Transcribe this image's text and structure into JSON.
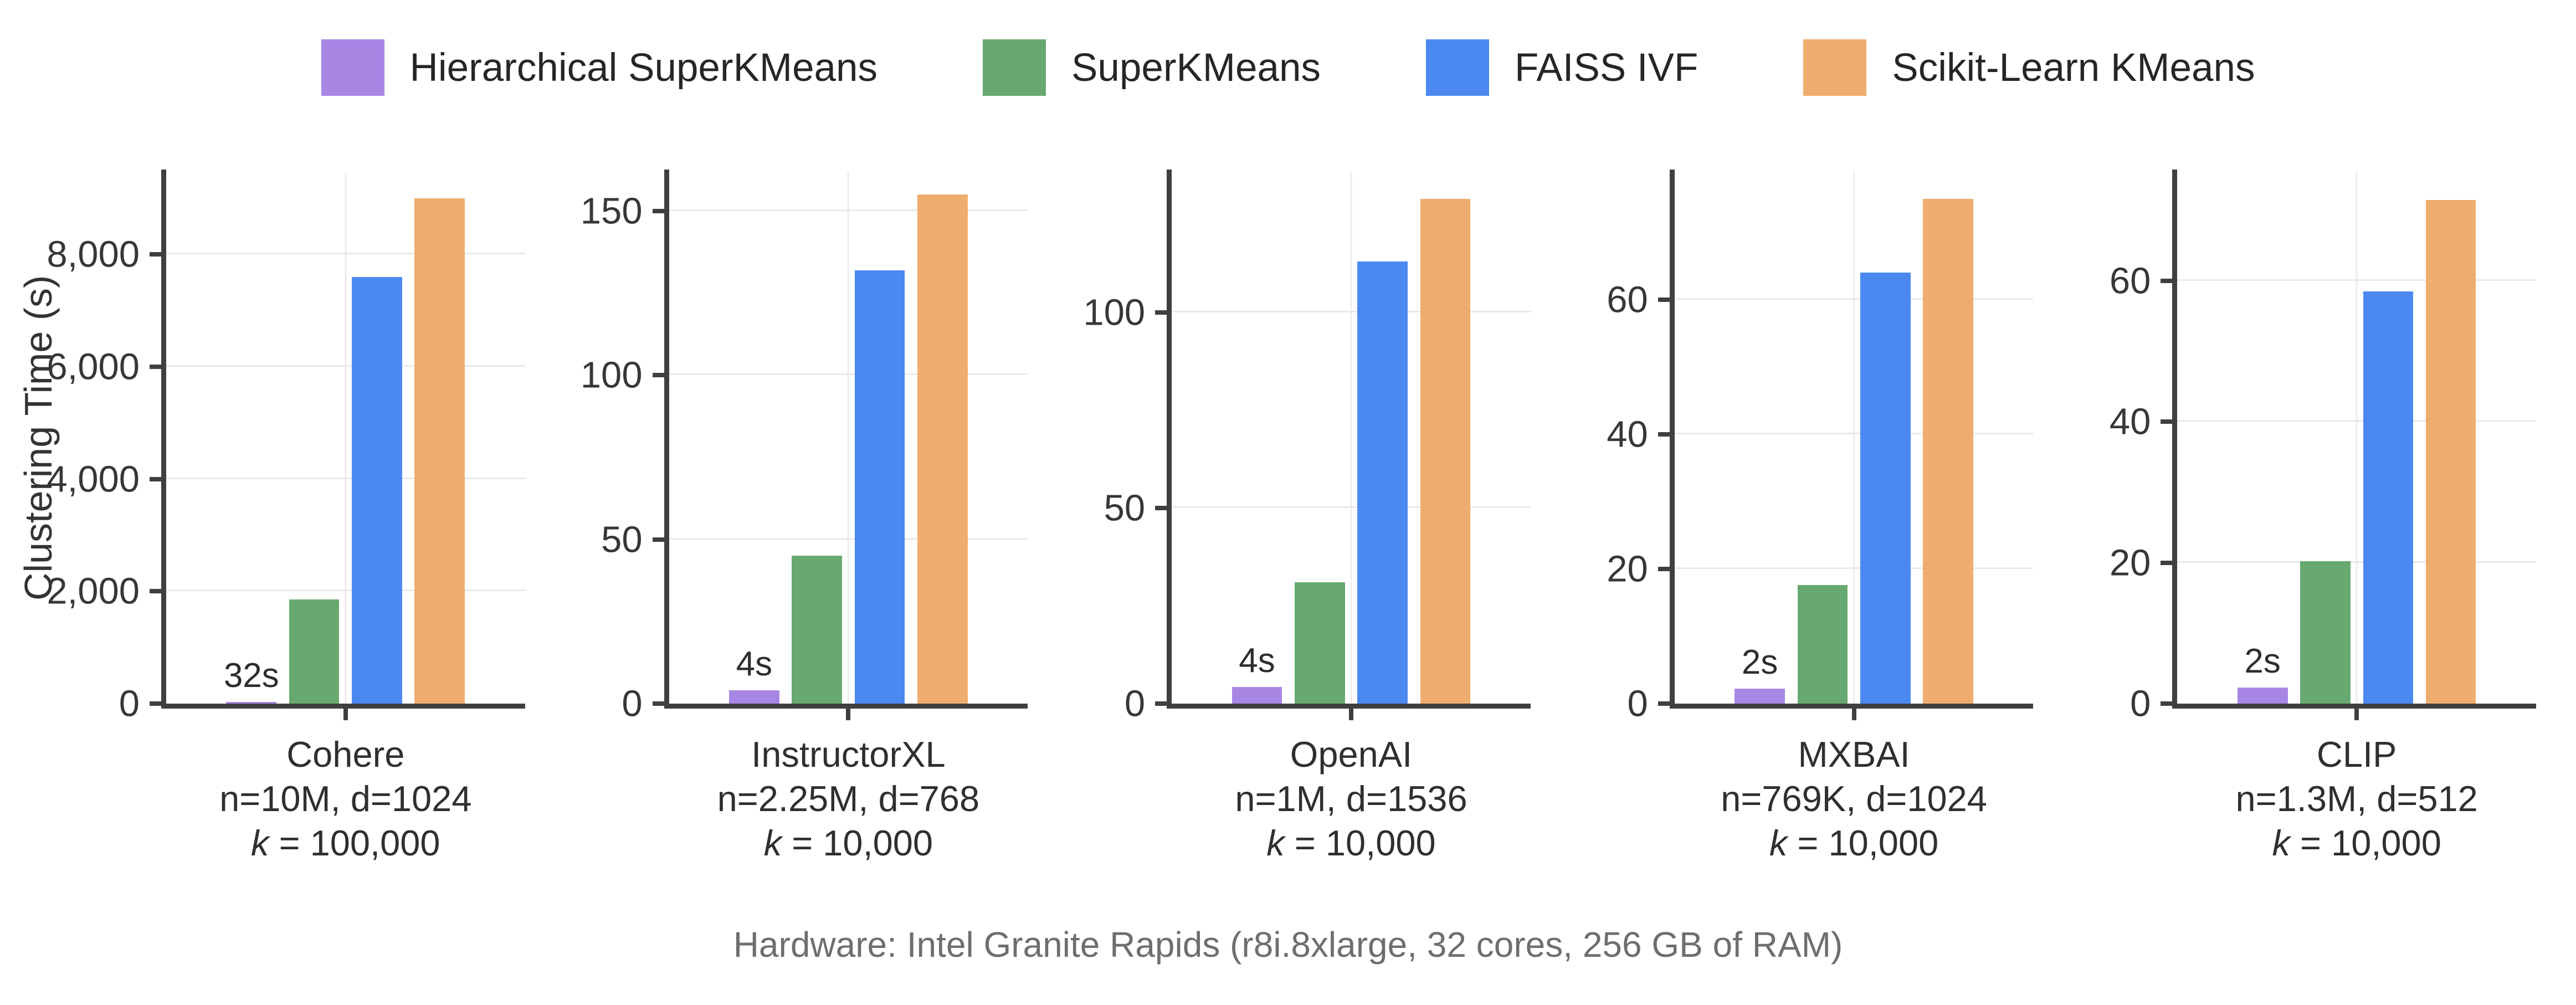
{
  "ylabel": "Clustering Time (s)",
  "caption": "Hardware: Intel Granite Rapids (r8i.8xlarge, 32 cores, 256 GB of RAM)",
  "legend": {
    "items": [
      {
        "label": "Hierarchical SuperKMeans",
        "color": "#a887e4",
        "hatch": "slash"
      },
      {
        "label": "SuperKMeans",
        "color": "#67a970",
        "hatch": "slash"
      },
      {
        "label": "FAISS IVF",
        "color": "#4b89f1",
        "hatch": "backslash"
      },
      {
        "label": "Scikit-Learn KMeans",
        "color": "#eead6e",
        "hatch": "cross"
      }
    ]
  },
  "chart_data": [
    {
      "type": "bar",
      "dataset": "Cohere",
      "subtitle": "n=10M, d=1024",
      "k_italic": "k",
      "k_rest": " = 100,000",
      "series": [
        "Hierarchical SuperKMeans",
        "SuperKMeans",
        "FAISS IVF",
        "Scikit-Learn KMeans"
      ],
      "values": [
        32,
        1850,
        7600,
        9000
      ],
      "annotation": "32s",
      "yticks": [
        0,
        2000,
        4000,
        6000,
        8000
      ],
      "ylim": [
        0,
        9470
      ],
      "grid": "horizontal + center vertical",
      "legend_position": "figure top"
    },
    {
      "type": "bar",
      "dataset": "InstructorXL",
      "subtitle": "n=2.25M, d=768",
      "k_italic": "k",
      "k_rest": " = 10,000",
      "series": [
        "Hierarchical SuperKMeans",
        "SuperKMeans",
        "FAISS IVF",
        "Scikit-Learn KMeans"
      ],
      "values": [
        4,
        45,
        132,
        155
      ],
      "annotation": "4s",
      "yticks": [
        0,
        50,
        100,
        150
      ],
      "ylim": [
        0,
        162
      ],
      "grid": "horizontal + center vertical",
      "legend_position": "figure top"
    },
    {
      "type": "bar",
      "dataset": "OpenAI",
      "subtitle": "n=1M, d=1536",
      "k_italic": "k",
      "k_rest": " = 10,000",
      "series": [
        "Hierarchical SuperKMeans",
        "SuperKMeans",
        "FAISS IVF",
        "Scikit-Learn KMeans"
      ],
      "values": [
        4.3,
        31,
        113,
        129
      ],
      "annotation": "4s",
      "yticks": [
        0,
        50,
        100
      ],
      "ylim": [
        0,
        136
      ],
      "grid": "horizontal + center vertical",
      "legend_position": "figure top"
    },
    {
      "type": "bar",
      "dataset": "MXBAI",
      "subtitle": "n=769K, d=1024",
      "k_italic": "k",
      "k_rest": " = 10,000",
      "series": [
        "Hierarchical SuperKMeans",
        "SuperKMeans",
        "FAISS IVF",
        "Scikit-Learn KMeans"
      ],
      "values": [
        2.2,
        17.6,
        64,
        75
      ],
      "annotation": "2s",
      "yticks": [
        0,
        20,
        40,
        60
      ],
      "ylim": [
        0,
        79
      ],
      "grid": "horizontal + center vertical",
      "legend_position": "figure top"
    },
    {
      "type": "bar",
      "dataset": "CLIP",
      "subtitle": "n=1.3M, d=512",
      "k_italic": "k",
      "k_rest": " = 10,000",
      "series": [
        "Hierarchical SuperKMeans",
        "SuperKMeans",
        "FAISS IVF",
        "Scikit-Learn KMeans"
      ],
      "values": [
        2.3,
        20.2,
        58.5,
        71.5
      ],
      "annotation": "2s",
      "yticks": [
        0,
        20,
        40,
        60
      ],
      "ylim": [
        0,
        75.5
      ],
      "grid": "horizontal + center vertical",
      "legend_position": "figure top"
    }
  ]
}
